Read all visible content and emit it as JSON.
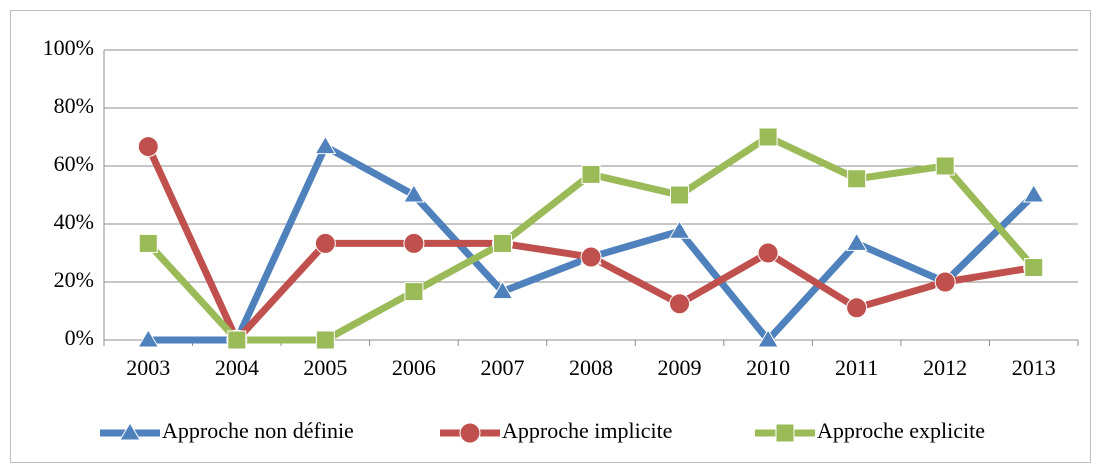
{
  "chart_data": {
    "type": "line",
    "categories": [
      "2003",
      "2004",
      "2005",
      "2006",
      "2007",
      "2008",
      "2009",
      "2010",
      "2011",
      "2012",
      "2013"
    ],
    "series": [
      {
        "name": "Approche non définie",
        "color": "#4f81bd",
        "marker": "triangle",
        "values": [
          0,
          0,
          66.7,
          50,
          16.7,
          28.6,
          37.5,
          0,
          33.3,
          20,
          50
        ]
      },
      {
        "name": "Approche implicite",
        "color": "#c0504d",
        "marker": "circle",
        "values": [
          66.7,
          0,
          33.3,
          33.3,
          33.3,
          28.6,
          12.5,
          30,
          11.1,
          20,
          25
        ]
      },
      {
        "name": "Approche explicite",
        "color": "#9bbb59",
        "marker": "square",
        "values": [
          33.3,
          0,
          0,
          16.7,
          33.3,
          57.1,
          50,
          70,
          55.6,
          60,
          25
        ]
      }
    ],
    "ylim": [
      0,
      100
    ],
    "yticks": [
      {
        "value": 0,
        "label": "0%"
      },
      {
        "value": 20,
        "label": "20%"
      },
      {
        "value": 40,
        "label": "40%"
      },
      {
        "value": 60,
        "label": "60%"
      },
      {
        "value": 80,
        "label": "80%"
      },
      {
        "value": 100,
        "label": "100%"
      }
    ],
    "grid": true,
    "legend": "bottom"
  }
}
